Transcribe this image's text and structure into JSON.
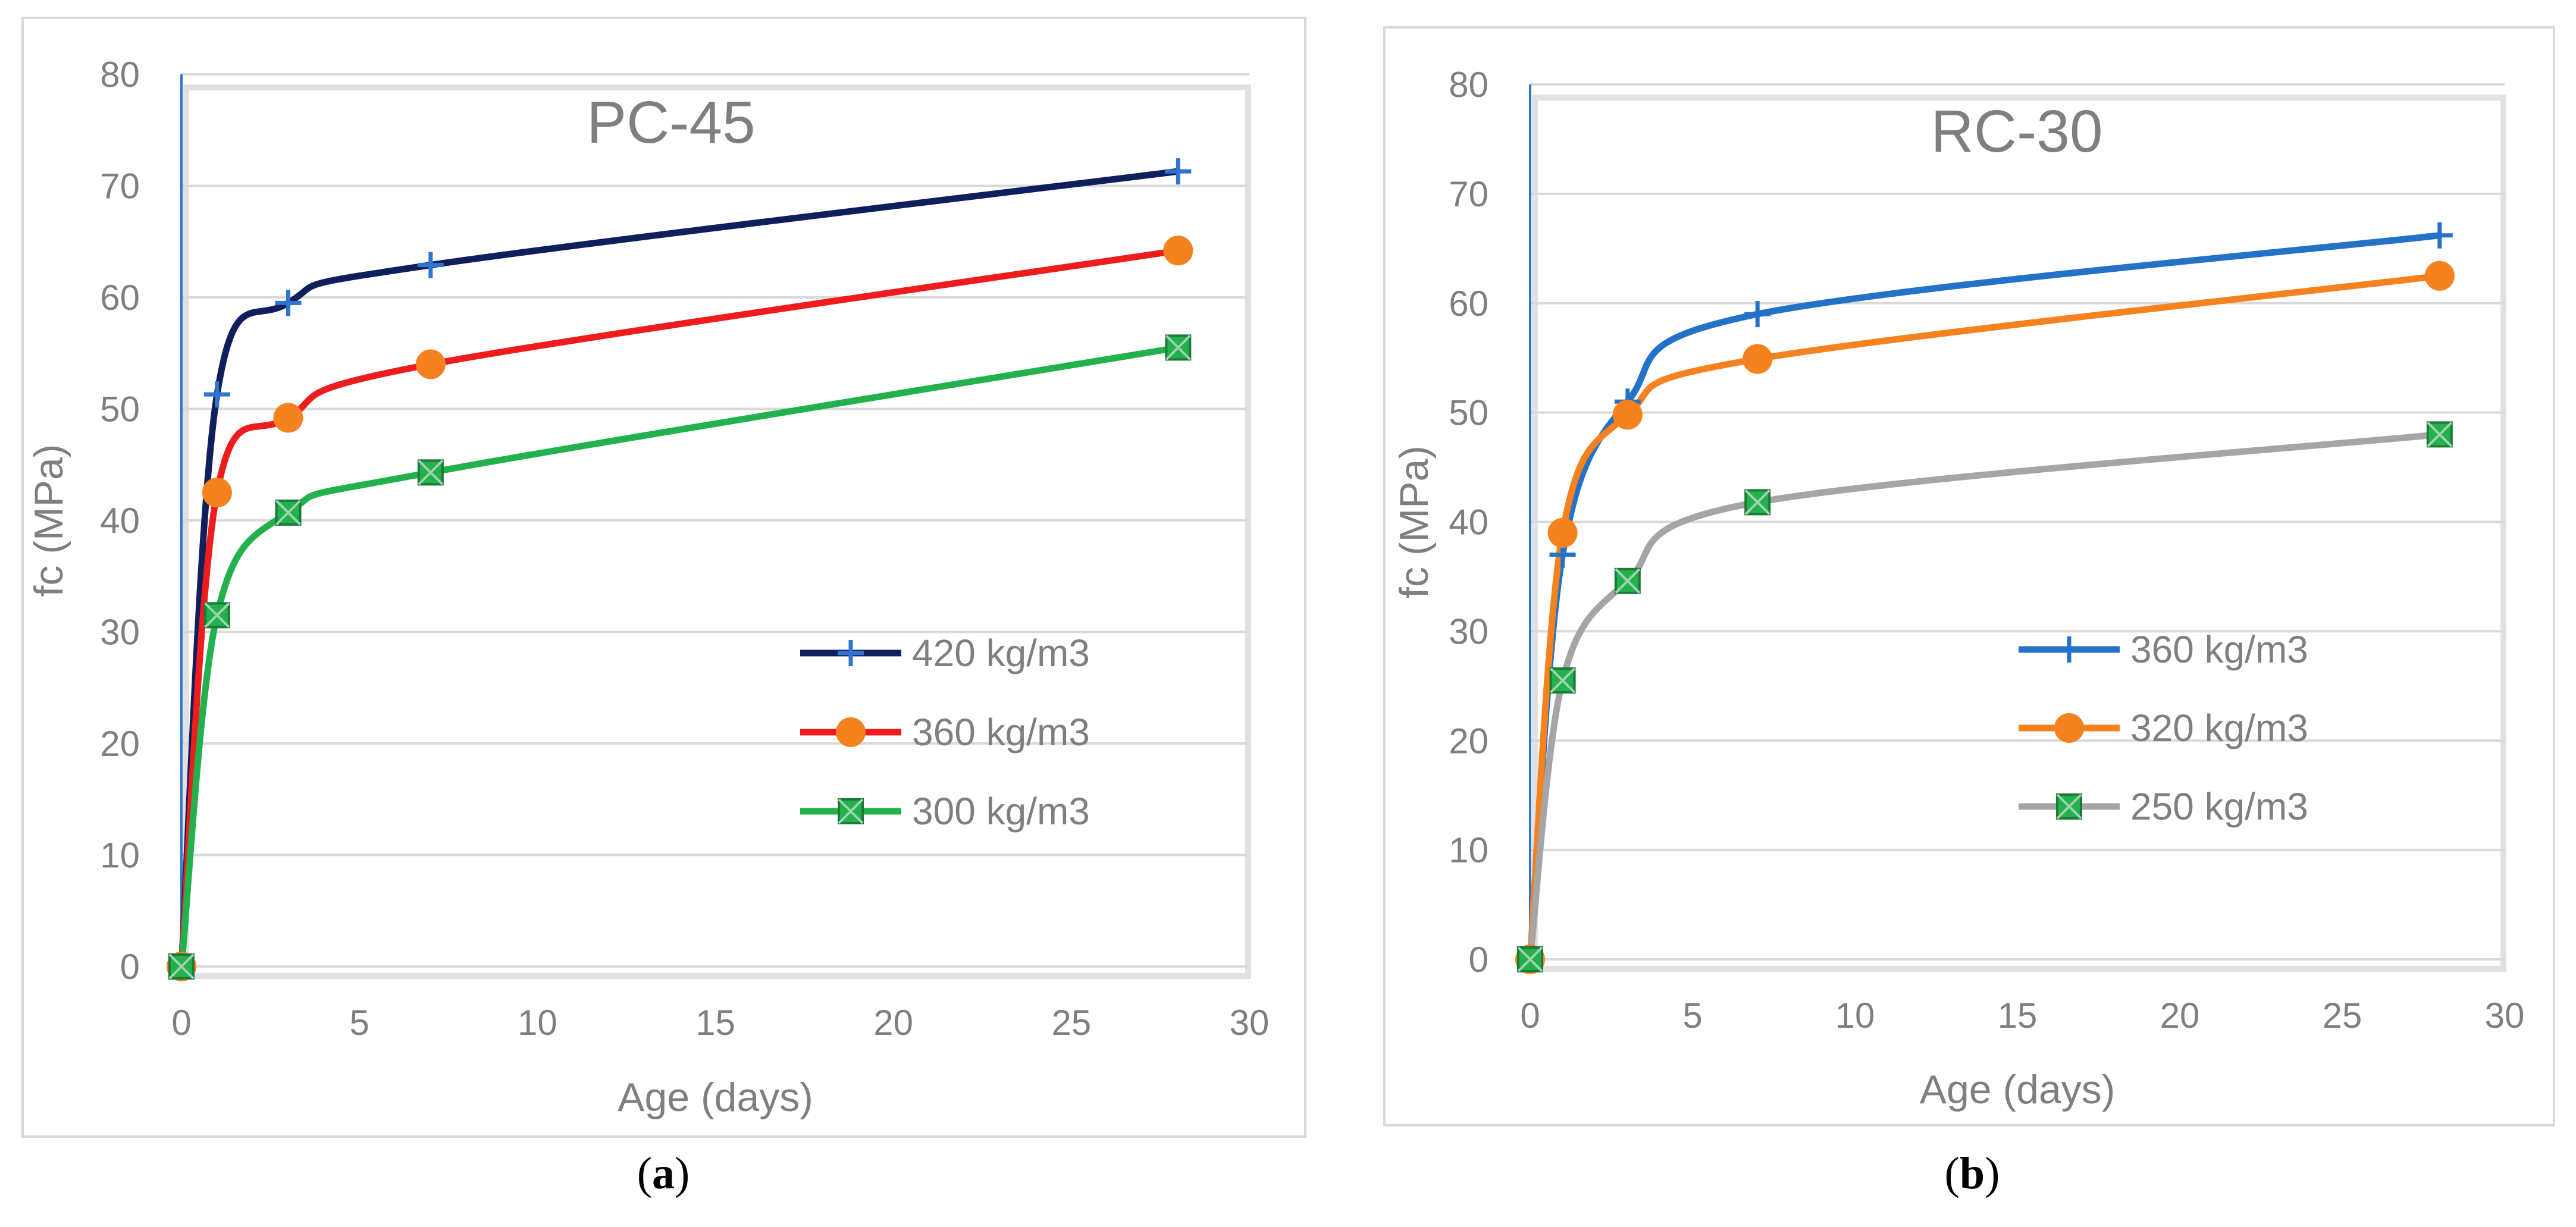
{
  "colors": {
    "axis_line": "#2f75d0",
    "grid": "#d9d9d9",
    "text": "#7f7f7f"
  },
  "panels": {
    "a": {
      "label_open": "(",
      "label_letter": "a",
      "label_close": ")"
    },
    "b": {
      "label_open": "(",
      "label_letter": "b",
      "label_close": ")"
    }
  },
  "chart_data": [
    {
      "id": "a",
      "type": "line",
      "title": "PC-45",
      "xlabel": "Age (days)",
      "ylabel": "fc (MPa)",
      "xlim": [
        0,
        30
      ],
      "ylim": [
        0,
        80
      ],
      "xticks": [
        0,
        5,
        10,
        15,
        20,
        25,
        30
      ],
      "yticks": [
        0,
        10,
        20,
        30,
        40,
        50,
        60,
        70,
        80
      ],
      "grid": "horizontal",
      "legend_position": "right-middle",
      "x": [
        0,
        1,
        3,
        7,
        28
      ],
      "series": [
        {
          "name": "420 kg/m3",
          "color": "#0f1f5c",
          "marker": "plus",
          "marker_color": "#2f75d0",
          "values": [
            0,
            51.3,
            59.5,
            62.9,
            71.3
          ]
        },
        {
          "name": "360 kg/m3",
          "color": "#ee1c1c",
          "marker": "circle",
          "marker_color": "#f5821f",
          "values": [
            0,
            42.5,
            49.2,
            54.0,
            64.2
          ]
        },
        {
          "name": "300 kg/m3",
          "color": "#22b14c",
          "marker": "box-x",
          "marker_color": "#22b14c",
          "values": [
            0,
            31.5,
            40.7,
            44.3,
            55.5
          ]
        }
      ]
    },
    {
      "id": "b",
      "type": "line",
      "title": "RC-30",
      "xlabel": "Age (days)",
      "ylabel": "fc (MPa)",
      "xlim": [
        0,
        30
      ],
      "ylim": [
        0,
        80
      ],
      "xticks": [
        0,
        5,
        10,
        15,
        20,
        25,
        30
      ],
      "yticks": [
        0,
        10,
        20,
        30,
        40,
        50,
        60,
        70,
        80
      ],
      "grid": "horizontal",
      "legend_position": "right-middle",
      "x": [
        0,
        1,
        3,
        7,
        28
      ],
      "series": [
        {
          "name": "360 kg/m3",
          "color": "#2372c8",
          "marker": "plus",
          "marker_color": "#2372c8",
          "values": [
            0,
            37.0,
            51.0,
            59.0,
            66.2
          ]
        },
        {
          "name": "320 kg/m3",
          "color": "#f5821f",
          "marker": "circle",
          "marker_color": "#f5821f",
          "values": [
            0,
            39.0,
            49.8,
            54.9,
            62.5
          ]
        },
        {
          "name": "250 kg/m3",
          "color": "#a5a5a5",
          "marker": "box-x",
          "marker_color": "#22b14c",
          "values": [
            0,
            25.5,
            34.6,
            41.8,
            48.0
          ]
        }
      ]
    }
  ]
}
